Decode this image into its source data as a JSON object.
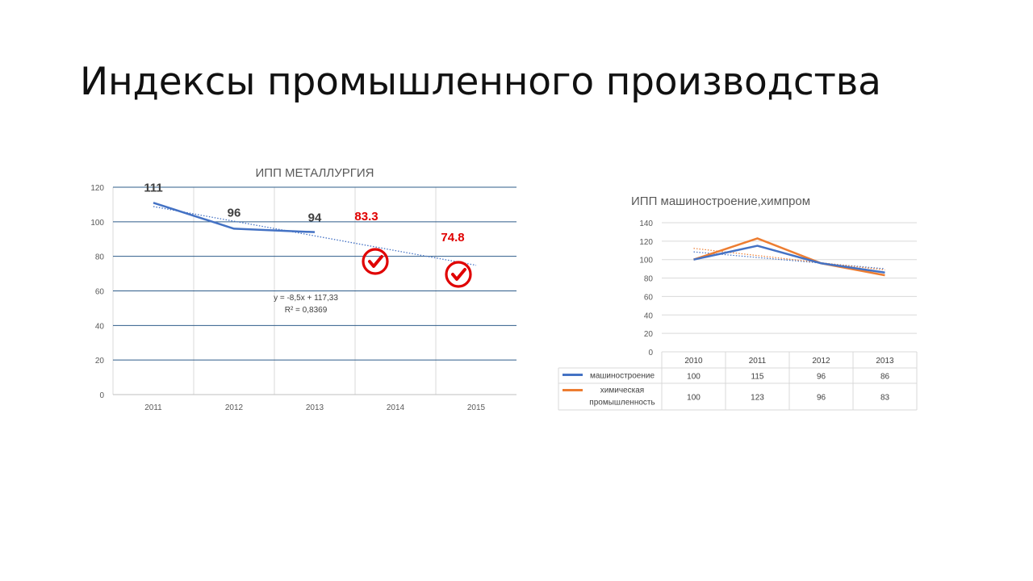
{
  "slide": {
    "title": "Индексы промышленного производства"
  },
  "colors": {
    "metallurgy_line": "#4472C4",
    "engineering_line": "#4472C4",
    "chemical_line": "#ED7D31",
    "forecast_red": "#E00000",
    "dark_label": "#404040",
    "gridline_blue": "#2E5C8A",
    "gridline_grey": "#D9D9D9"
  },
  "chart_data": [
    {
      "type": "line",
      "title": "ИПП МЕТАЛЛУРГИЯ",
      "categories": [
        "2011",
        "2012",
        "2013",
        "2014",
        "2015"
      ],
      "series": [
        {
          "values": [
            111,
            96,
            94,
            null,
            null
          ],
          "color": "#4472C4"
        }
      ],
      "data_labels": [
        "111",
        "96",
        "94",
        "83.3",
        "74.8"
      ],
      "forecast": {
        "x": [
          "2014",
          "2015"
        ],
        "values": [
          83.3,
          74.8
        ],
        "color": "#E00000",
        "marker_icon": "checkmark-circle-icon"
      },
      "trendline": {
        "type": "linear",
        "style": "dotted",
        "slope": -8.5,
        "intercept": 117.33
      },
      "trend_equation": "y = -8,5x + 117,33",
      "r_squared": "R² = 0,8369",
      "y_ticks": [
        "0",
        "20",
        "40",
        "60",
        "80",
        "100",
        "120"
      ],
      "ylim": [
        0,
        120
      ],
      "grid": true,
      "legend": "none"
    },
    {
      "type": "line",
      "title": "ИПП машиностроение,химпром",
      "categories": [
        "2010",
        "2011",
        "2012",
        "2013"
      ],
      "series": [
        {
          "name": "машиностроение",
          "values": [
            100,
            115,
            96,
            86
          ],
          "color": "#4472C4"
        },
        {
          "name": "химическая промышленность",
          "values": [
            100,
            123,
            96,
            83
          ],
          "color": "#ED7D31"
        }
      ],
      "cell_text": [
        [
          "100",
          "115",
          "96",
          "86"
        ],
        [
          "100",
          "123",
          "96",
          "83"
        ]
      ],
      "trendlines": [
        {
          "series": "машиностроение",
          "type": "linear",
          "style": "dotted",
          "color": "#4472C4"
        },
        {
          "series": "химическая промышленность",
          "type": "linear",
          "style": "dotted",
          "color": "#ED7D31"
        }
      ],
      "y_ticks": [
        "0",
        "20",
        "40",
        "60",
        "80",
        "100",
        "120",
        "140"
      ],
      "ylim": [
        0,
        140
      ],
      "grid": true,
      "legend": "data-table"
    }
  ]
}
